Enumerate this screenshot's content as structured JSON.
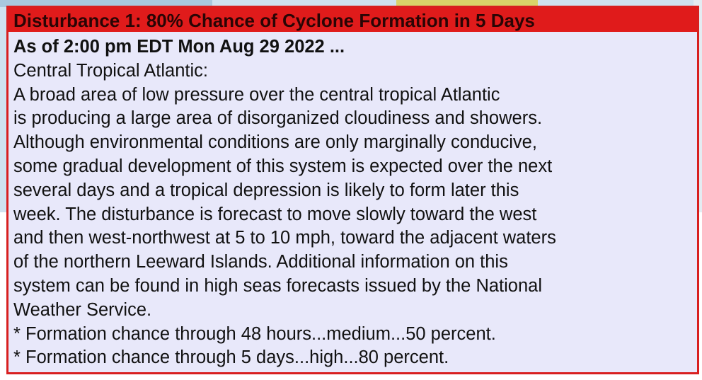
{
  "header": {
    "title": "Disturbance 1: 80% Chance of Cyclone Formation in 5 Days"
  },
  "body": {
    "timestamp": "As of 2:00 pm EDT Mon Aug 29 2022 ...",
    "lines": [
      "Central Tropical Atlantic:",
      "A broad area of low pressure over the central tropical Atlantic",
      "is producing a large area of disorganized cloudiness and showers.",
      "Although environmental conditions are only marginally conducive,",
      "some gradual development of this system is expected over the next",
      "several days and a tropical depression is likely to form later this",
      "week. The disturbance is forecast to move slowly toward the west",
      "and then west-northwest at 5 to 10 mph, toward the adjacent waters",
      "of the northern Leeward Islands. Additional information on this",
      "system can be found in high seas forecasts issued by the National",
      "Weather Service.",
      "* Formation chance through 48 hours...medium...50 percent.",
      "* Formation chance through 5 days...high...80 percent."
    ]
  }
}
